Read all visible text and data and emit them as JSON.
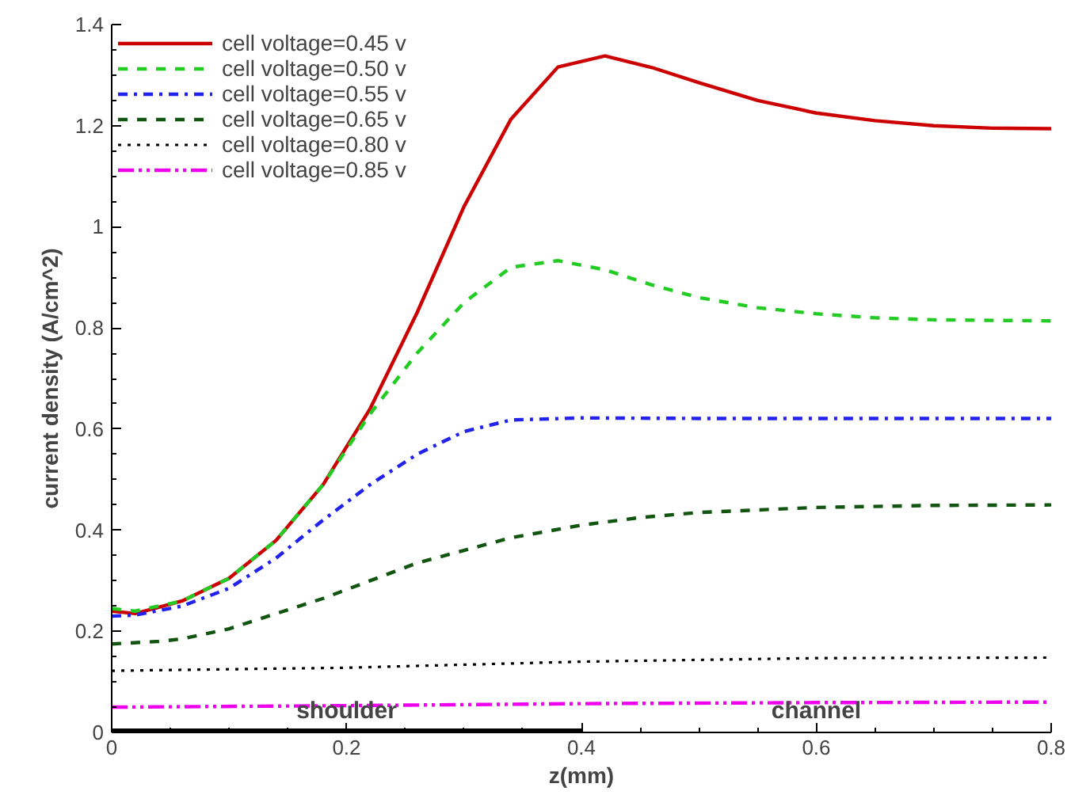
{
  "chart_data": {
    "type": "line",
    "xlabel": "z(mm)",
    "ylabel": "current density (A/cm^2)",
    "xlim": [
      0,
      0.8
    ],
    "ylim": [
      0,
      1.4
    ],
    "xticks": [
      0,
      0.2,
      0.4,
      0.6,
      0.8
    ],
    "yticks": [
      0,
      0.2,
      0.4,
      0.6,
      0.8,
      1,
      1.2,
      1.4
    ],
    "grid": false,
    "legend": "top left",
    "marker": "none",
    "series": [
      {
        "name": "cell voltage=0.45 v",
        "color": "#cc0000",
        "line_style": "solid",
        "x": [
          0,
          0.02,
          0.06,
          0.1,
          0.14,
          0.18,
          0.22,
          0.26,
          0.3,
          0.34,
          0.38,
          0.42,
          0.46,
          0.5,
          0.55,
          0.6,
          0.65,
          0.7,
          0.75,
          0.8
        ],
        "values": [
          0.24,
          0.235,
          0.26,
          0.305,
          0.38,
          0.49,
          0.64,
          0.83,
          1.04,
          1.213,
          1.316,
          1.338,
          1.315,
          1.285,
          1.25,
          1.225,
          1.21,
          1.2,
          1.195,
          1.194
        ]
      },
      {
        "name": "cell voltage=0.50 v",
        "color": "#22cc22",
        "line_style": "dashed",
        "x": [
          0,
          0.02,
          0.06,
          0.1,
          0.14,
          0.18,
          0.22,
          0.26,
          0.3,
          0.34,
          0.38,
          0.42,
          0.46,
          0.5,
          0.55,
          0.6,
          0.65,
          0.7,
          0.8
        ],
        "values": [
          0.245,
          0.24,
          0.26,
          0.305,
          0.38,
          0.49,
          0.63,
          0.75,
          0.85,
          0.92,
          0.933,
          0.915,
          0.885,
          0.86,
          0.84,
          0.828,
          0.82,
          0.816,
          0.814
        ]
      },
      {
        "name": "cell voltage=0.55 v",
        "color": "#2222ee",
        "line_style": "dashdot",
        "x": [
          0,
          0.02,
          0.06,
          0.1,
          0.14,
          0.18,
          0.22,
          0.26,
          0.3,
          0.34,
          0.4,
          0.5,
          0.6,
          0.8
        ],
        "values": [
          0.23,
          0.232,
          0.25,
          0.285,
          0.345,
          0.42,
          0.49,
          0.55,
          0.595,
          0.618,
          0.622,
          0.621,
          0.621,
          0.621
        ]
      },
      {
        "name": "cell voltage=0.65 v",
        "color": "#115511",
        "line_style": "dashed",
        "x": [
          0,
          0.04,
          0.06,
          0.1,
          0.14,
          0.18,
          0.22,
          0.26,
          0.3,
          0.34,
          0.4,
          0.45,
          0.5,
          0.6,
          0.7,
          0.8
        ],
        "values": [
          0.175,
          0.18,
          0.185,
          0.205,
          0.235,
          0.265,
          0.3,
          0.335,
          0.36,
          0.385,
          0.41,
          0.425,
          0.435,
          0.445,
          0.449,
          0.45
        ]
      },
      {
        "name": "cell voltage=0.80 v",
        "color": "#000000",
        "line_style": "dotted",
        "x": [
          0,
          0.2,
          0.4,
          0.6,
          0.8
        ],
        "values": [
          0.122,
          0.128,
          0.14,
          0.147,
          0.148
        ]
      },
      {
        "name": "cell voltage=0.85 v",
        "color": "#ee00ee",
        "line_style": "dashdotdot",
        "x": [
          0,
          0.2,
          0.4,
          0.6,
          0.8
        ],
        "values": [
          0.05,
          0.053,
          0.057,
          0.059,
          0.06
        ]
      },
      {
        "color": "#000000",
        "line_style": "solid",
        "x": [
          0,
          0.4
        ],
        "values": [
          0,
          0
        ]
      }
    ],
    "annotations": [
      "shoulder",
      "channel"
    ]
  }
}
